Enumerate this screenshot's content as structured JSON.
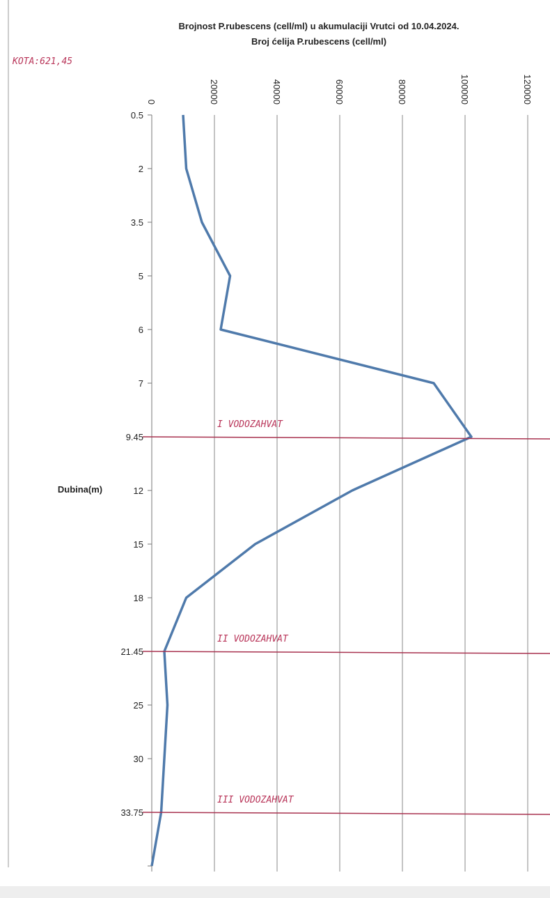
{
  "chart_data": {
    "type": "line",
    "orientation": "horizontal",
    "title": "Brojnost P.rubescens (cell/ml) u akumulaciji Vrutci od 10.04.2024.",
    "subtitle": "Broj ćelija P.rubescens (cell/ml)",
    "y_label": "Dubina(m)",
    "categories": [
      "0.5",
      "2",
      "3.5",
      "5",
      "6",
      "7",
      "9.45",
      "12",
      "15",
      "18",
      "21.45",
      "25",
      "30",
      "33.75",
      null
    ],
    "values": [
      10000,
      11000,
      16000,
      25000,
      22000,
      90000,
      102000,
      64000,
      33000,
      11000,
      4000,
      5000,
      4000,
      3000,
      0
    ],
    "color": "#4f7aab",
    "xlim": [
      0,
      120000
    ],
    "xticks": [
      0,
      20000,
      40000,
      60000,
      80000,
      100000,
      120000
    ],
    "grid": true,
    "annotations": [
      "KOTA:621,45",
      "I VODOZAHVAT",
      "II VODOZAHVAT",
      "III VODOZAHVAT"
    ]
  }
}
